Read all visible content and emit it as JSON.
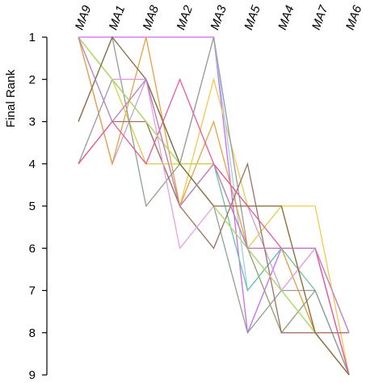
{
  "chart_data": {
    "type": "line",
    "ylabel": "Final Rank",
    "xlabel": "",
    "categories": [
      "MA9",
      "MA1",
      "MA8",
      "MA2",
      "MA3",
      "MA5",
      "MA4",
      "MA7",
      "MA6"
    ],
    "yticks": [
      "1",
      "2",
      "3",
      "4",
      "5",
      "6",
      "7",
      "8",
      "9"
    ],
    "ylim": [
      1,
      9
    ],
    "y_inverted": true,
    "grid": false,
    "legend": "none",
    "series": [
      {
        "color": "#cc66ff",
        "values": [
          1,
          1,
          1,
          1,
          1,
          8,
          6,
          6,
          9
        ]
      },
      {
        "color": "#f2c94c",
        "values": [
          1,
          2,
          2,
          5,
          2,
          5,
          5,
          5,
          9
        ]
      },
      {
        "color": "#9bd2e6",
        "values": [
          1,
          3,
          2,
          4,
          1,
          7,
          6,
          8,
          9
        ]
      },
      {
        "color": "#c8a0d8",
        "values": [
          1,
          4,
          2,
          5,
          4,
          5,
          7,
          6,
          9
        ]
      },
      {
        "color": "#e8a040",
        "values": [
          1,
          4,
          1,
          5,
          3,
          6,
          6,
          8,
          9
        ]
      },
      {
        "color": "#8fa070",
        "values": [
          1,
          2,
          3,
          5,
          4,
          6,
          8,
          7,
          9
        ]
      },
      {
        "color": "#66c2a5",
        "values": [
          1,
          2,
          2,
          4,
          4,
          7,
          6,
          7,
          9
        ]
      },
      {
        "color": "#d9d04a",
        "values": [
          1,
          2,
          4,
          4,
          4,
          6,
          5,
          8,
          9
        ]
      },
      {
        "color": "#90a090",
        "values": [
          3,
          1,
          5,
          4,
          5,
          8,
          7,
          8,
          9
        ]
      },
      {
        "color": "#9a9aa0",
        "values": [
          4,
          2,
          3,
          4,
          1,
          6,
          7,
          7,
          9
        ]
      },
      {
        "color": "#a07060",
        "values": [
          4,
          3,
          3,
          5,
          6,
          4,
          8,
          8,
          8
        ]
      },
      {
        "color": "#e85a9a",
        "values": [
          4,
          3,
          4,
          2,
          4,
          5,
          6,
          6,
          9
        ]
      },
      {
        "color": "#e8a0e0",
        "values": [
          1,
          2,
          2,
          6,
          5,
          6,
          7,
          6,
          8
        ]
      },
      {
        "color": "#b0e060",
        "values": [
          1,
          2,
          3,
          4,
          5,
          6,
          7,
          8,
          9
        ]
      },
      {
        "color": "#8a6a40",
        "values": [
          3,
          1,
          2,
          4,
          5,
          5,
          5,
          8,
          9
        ]
      },
      {
        "color": "#c080c0",
        "values": [
          1,
          3,
          2,
          5,
          4,
          6,
          6,
          6,
          8
        ]
      }
    ]
  }
}
